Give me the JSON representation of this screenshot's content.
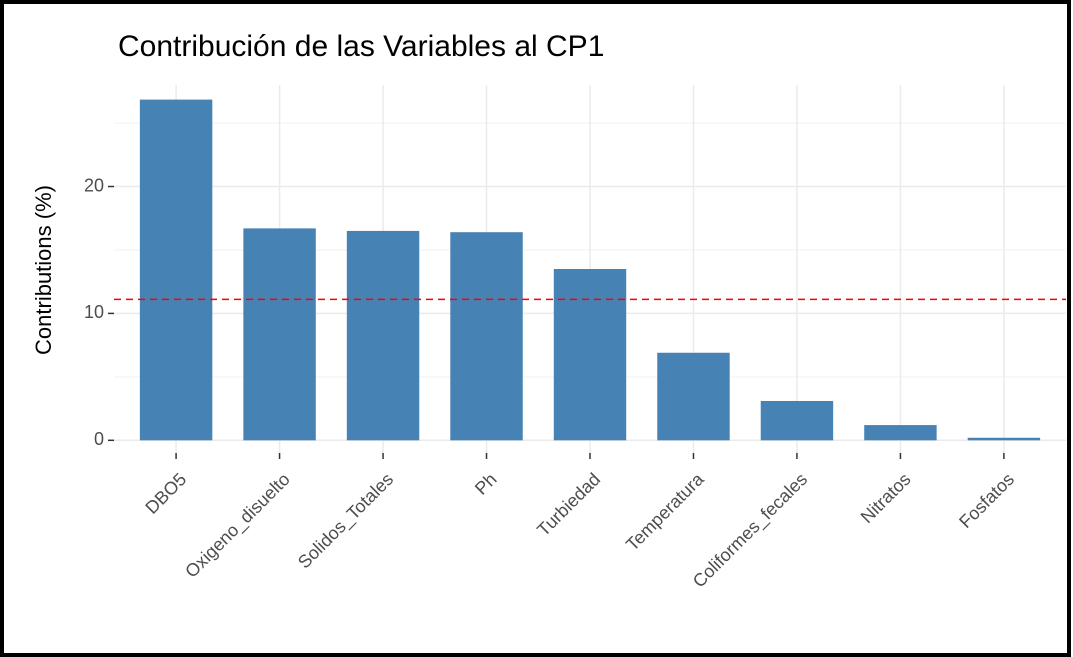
{
  "chart_data": {
    "type": "bar",
    "title": "Contribución de las Variables al CP1",
    "y_label": "Contributions (%)",
    "categories": [
      "DBO5",
      "Oxigeno_disuelto",
      "Solidos_Totales",
      "Ph",
      "Turbiedad",
      "Temperatura",
      "Coliformes_fecales",
      "Nitratos",
      "Fosfatos"
    ],
    "values": [
      26.85,
      16.7,
      16.5,
      16.4,
      13.5,
      6.9,
      3.1,
      1.2,
      0.2
    ],
    "color": "#4682b4",
    "reference_line": {
      "value": 11.11,
      "color": "#ff0000"
    },
    "ylim": [
      -1,
      28
    ],
    "yticks": [
      0,
      10,
      20
    ],
    "yminor": [
      5,
      15,
      25
    ],
    "grid": true
  }
}
